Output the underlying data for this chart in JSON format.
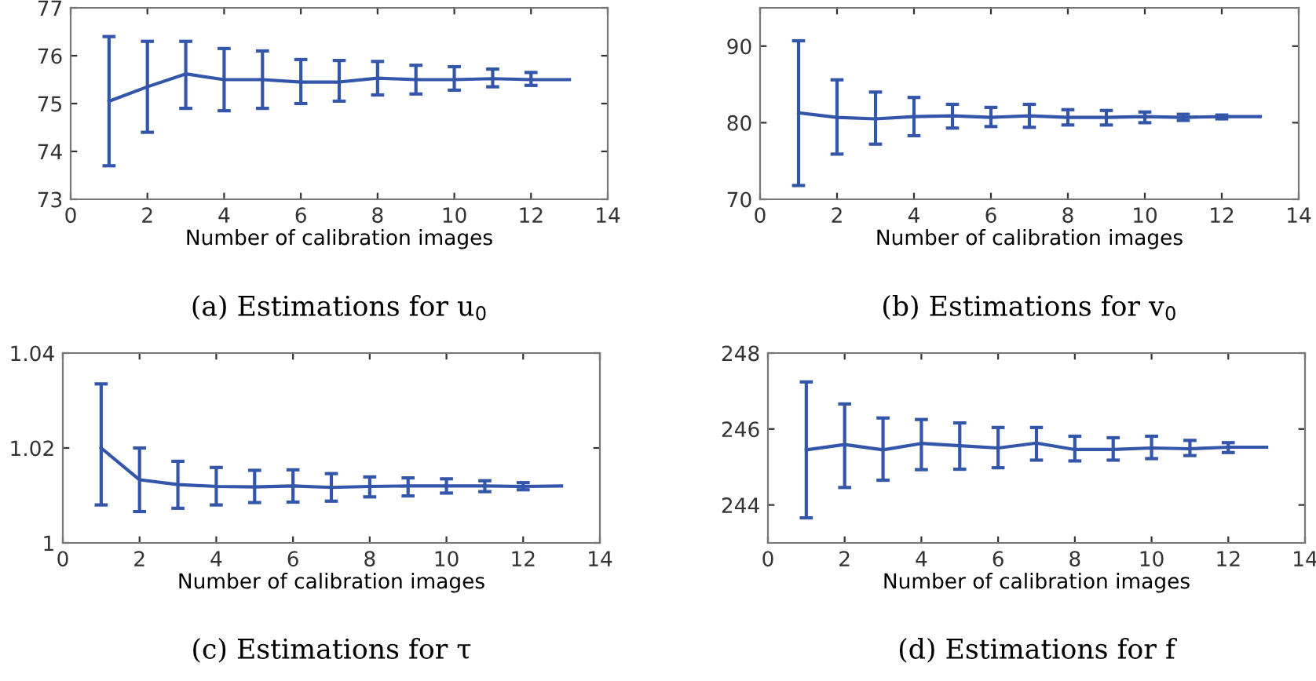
{
  "chart_data": [
    {
      "type": "line",
      "title": "(a) Estimations for u$_{0}$",
      "xlabel": "Number of calibration images",
      "xlim": [
        0,
        14
      ],
      "xticks": [
        0,
        2,
        4,
        6,
        8,
        10,
        12,
        14
      ],
      "ylim": [
        73,
        77
      ],
      "yticks": [
        73,
        74,
        75,
        76,
        77
      ],
      "grid": false,
      "legend": false,
      "x": [
        1,
        2,
        3,
        4,
        5,
        6,
        7,
        8,
        9,
        10,
        11,
        12,
        13
      ],
      "series": [
        {
          "color": "#3355aa",
          "values": [
            75.05,
            75.35,
            75.62,
            75.5,
            75.5,
            75.45,
            75.45,
            75.53,
            75.5,
            75.5,
            75.52,
            75.5,
            75.5
          ],
          "errors": [
            [
              73.7,
              76.4
            ],
            [
              74.4,
              76.3
            ],
            [
              74.9,
              76.3
            ],
            [
              74.85,
              76.15
            ],
            [
              74.9,
              76.1
            ],
            [
              75.0,
              75.92
            ],
            [
              75.05,
              75.9
            ],
            [
              75.18,
              75.88
            ],
            [
              75.2,
              75.8
            ],
            [
              75.28,
              75.77
            ],
            [
              75.35,
              75.72
            ],
            [
              75.38,
              75.65
            ],
            null
          ]
        }
      ]
    },
    {
      "type": "line",
      "title": "(b) Estimations for v$_{0}$",
      "xlabel": "Number of calibration images",
      "xlim": [
        0,
        14
      ],
      "xticks": [
        0,
        2,
        4,
        6,
        8,
        10,
        12,
        14
      ],
      "ylim": [
        70,
        95
      ],
      "yticks": [
        70,
        80,
        90
      ],
      "grid": false,
      "legend": false,
      "x": [
        1,
        2,
        3,
        4,
        5,
        6,
        7,
        8,
        9,
        10,
        11,
        12,
        13
      ],
      "series": [
        {
          "color": "#3355aa",
          "values": [
            81.3,
            80.7,
            80.5,
            80.8,
            80.9,
            80.7,
            80.9,
            80.7,
            80.7,
            80.8,
            80.7,
            80.8,
            80.8
          ],
          "errors": [
            [
              71.8,
              90.7
            ],
            [
              75.9,
              85.6
            ],
            [
              77.2,
              84.0
            ],
            [
              78.3,
              83.3
            ],
            [
              79.3,
              82.4
            ],
            [
              79.5,
              82.0
            ],
            [
              79.4,
              82.4
            ],
            [
              79.7,
              81.7
            ],
            [
              79.7,
              81.6
            ],
            [
              80.0,
              81.4
            ],
            [
              80.3,
              81.1
            ],
            [
              80.5,
              81.0
            ],
            null
          ]
        }
      ]
    },
    {
      "type": "line",
      "title": "(c) Estimations for τ",
      "xlabel": "Number of calibration images",
      "xlim": [
        0,
        14
      ],
      "xticks": [
        0,
        2,
        4,
        6,
        8,
        10,
        12,
        14
      ],
      "ylim": [
        1,
        1.04
      ],
      "yticks": [
        1,
        1.02,
        1.04
      ],
      "grid": false,
      "legend": false,
      "x": [
        1,
        2,
        3,
        4,
        5,
        6,
        7,
        8,
        9,
        10,
        11,
        12,
        13
      ],
      "series": [
        {
          "color": "#3355aa",
          "values": [
            1.02,
            1.0133,
            1.0123,
            1.0119,
            1.0118,
            1.012,
            1.0117,
            1.0119,
            1.012,
            1.012,
            1.012,
            1.0119,
            1.012
          ],
          "errors": [
            [
              1.008,
              1.0335
            ],
            [
              1.0066,
              1.02
            ],
            [
              1.0073,
              1.0172
            ],
            [
              1.008,
              1.0159
            ],
            [
              1.0085,
              1.0153
            ],
            [
              1.0086,
              1.0154
            ],
            [
              1.0088,
              1.0146
            ],
            [
              1.0097,
              1.0139
            ],
            [
              1.0099,
              1.0137
            ],
            [
              1.0105,
              1.0135
            ],
            [
              1.0108,
              1.0131
            ],
            [
              1.0112,
              1.0127
            ],
            null
          ]
        }
      ]
    },
    {
      "type": "line",
      "title": "(d) Estimations for f",
      "xlabel": "Number of calibration images",
      "xlim": [
        0,
        14
      ],
      "xticks": [
        0,
        2,
        4,
        6,
        8,
        10,
        12,
        14
      ],
      "ylim": [
        243,
        248
      ],
      "yticks": [
        244,
        246,
        248
      ],
      "grid": false,
      "legend": false,
      "x": [
        1,
        2,
        3,
        4,
        5,
        6,
        7,
        8,
        9,
        10,
        11,
        12,
        13
      ],
      "series": [
        {
          "color": "#3355aa",
          "values": [
            245.45,
            245.59,
            245.45,
            245.62,
            245.56,
            245.5,
            245.63,
            245.46,
            245.46,
            245.5,
            245.48,
            245.52,
            245.52
          ],
          "errors": [
            [
              243.66,
              247.24
            ],
            [
              244.46,
              246.66
            ],
            [
              244.65,
              246.29
            ],
            [
              244.93,
              246.25
            ],
            [
              244.94,
              246.16
            ],
            [
              244.98,
              246.04
            ],
            [
              245.18,
              246.04
            ],
            [
              245.16,
              245.81
            ],
            [
              245.18,
              245.77
            ],
            [
              245.22,
              245.81
            ],
            [
              245.3,
              245.7
            ],
            [
              245.38,
              245.64
            ],
            null
          ]
        }
      ]
    }
  ]
}
